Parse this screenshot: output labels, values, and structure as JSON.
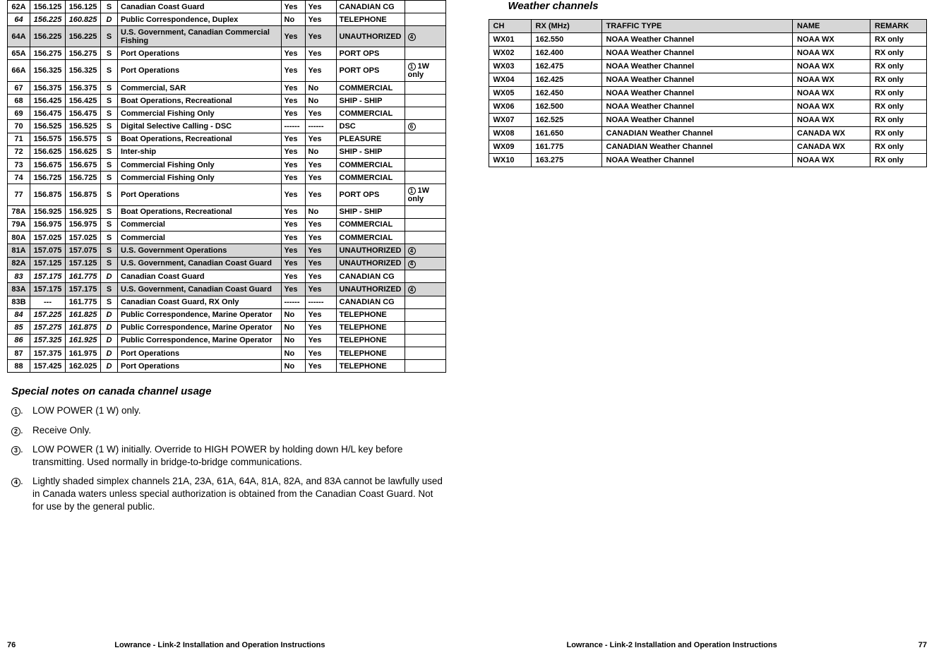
{
  "leftTable": {
    "rows": [
      {
        "ch": "62A",
        "tx": "156.125",
        "rx": "156.125",
        "mode": "S",
        "desc": "Canadian Coast Guard",
        "a": "Yes",
        "b": "Yes",
        "name": "CANADIAN CG",
        "note": "",
        "shade": false,
        "bi": false
      },
      {
        "ch": "64",
        "tx": "156.225",
        "rx": "160.825",
        "mode": "D",
        "desc": "Public Correspondence, Duplex",
        "a": "No",
        "b": "Yes",
        "name": "TELEPHONE",
        "note": "",
        "shade": false,
        "bi": true
      },
      {
        "ch": "64A",
        "tx": "156.225",
        "rx": "156.225",
        "mode": "S",
        "desc": "U.S. Government, Canadian Commercial Fishing",
        "a": "Yes",
        "b": "Yes",
        "name": "UNAUTHORIZED",
        "note": "④",
        "shade": true,
        "bi": false
      },
      {
        "ch": "65A",
        "tx": "156.275",
        "rx": "156.275",
        "mode": "S",
        "desc": "Port Operations",
        "a": "Yes",
        "b": "Yes",
        "name": "PORT OPS",
        "note": "",
        "shade": false,
        "bi": false
      },
      {
        "ch": "66A",
        "tx": "156.325",
        "rx": "156.325",
        "mode": "S",
        "desc": "Port Operations",
        "a": "Yes",
        "b": "Yes",
        "name": "PORT OPS",
        "note": "① 1W only",
        "shade": false,
        "bi": false
      },
      {
        "ch": "67",
        "tx": "156.375",
        "rx": "156.375",
        "mode": "S",
        "desc": "Commercial, SAR",
        "a": "Yes",
        "b": "No",
        "name": "COMMERCIAL",
        "note": "",
        "shade": false,
        "bi": false
      },
      {
        "ch": "68",
        "tx": "156.425",
        "rx": "156.425",
        "mode": "S",
        "desc": "Boat Operations, Recreational",
        "a": "Yes",
        "b": "No",
        "name": "SHIP - SHIP",
        "note": "",
        "shade": false,
        "bi": false
      },
      {
        "ch": "69",
        "tx": "156.475",
        "rx": "156.475",
        "mode": "S",
        "desc": "Commercial Fishing Only",
        "a": "Yes",
        "b": "Yes",
        "name": "COMMERCIAL",
        "note": "",
        "shade": false,
        "bi": false
      },
      {
        "ch": "70",
        "tx": "156.525",
        "rx": "156.525",
        "mode": "S",
        "desc": "Digital Selective Calling - DSC",
        "a": "------",
        "b": "------",
        "name": "DSC",
        "note": "⑥",
        "shade": false,
        "bi": false
      },
      {
        "ch": "71",
        "tx": "156.575",
        "rx": "156.575",
        "mode": "S",
        "desc": "Boat Operations, Recreational",
        "a": "Yes",
        "b": "Yes",
        "name": "PLEASURE",
        "note": "",
        "shade": false,
        "bi": false
      },
      {
        "ch": "72",
        "tx": "156.625",
        "rx": "156.625",
        "mode": "S",
        "desc": "Inter-ship",
        "a": "Yes",
        "b": "No",
        "name": "SHIP - SHIP",
        "note": "",
        "shade": false,
        "bi": false
      },
      {
        "ch": "73",
        "tx": "156.675",
        "rx": "156.675",
        "mode": "S",
        "desc": "Commercial Fishing Only",
        "a": "Yes",
        "b": "Yes",
        "name": "COMMERCIAL",
        "note": "",
        "shade": false,
        "bi": false
      },
      {
        "ch": "74",
        "tx": "156.725",
        "rx": "156.725",
        "mode": "S",
        "desc": "Commercial Fishing Only",
        "a": "Yes",
        "b": "Yes",
        "name": "COMMERCIAL",
        "note": "",
        "shade": false,
        "bi": false
      },
      {
        "ch": "77",
        "tx": "156.875",
        "rx": "156.875",
        "mode": "S",
        "desc": "Port Operations",
        "a": "Yes",
        "b": "Yes",
        "name": "PORT OPS",
        "note": "① 1W only",
        "shade": false,
        "bi": false
      },
      {
        "ch": "78A",
        "tx": "156.925",
        "rx": "156.925",
        "mode": "S",
        "desc": "Boat Operations, Recreational",
        "a": "Yes",
        "b": "No",
        "name": "SHIP - SHIP",
        "note": "",
        "shade": false,
        "bi": false
      },
      {
        "ch": "79A",
        "tx": "156.975",
        "rx": "156.975",
        "mode": "S",
        "desc": "Commercial",
        "a": "Yes",
        "b": "Yes",
        "name": "COMMERCIAL",
        "note": "",
        "shade": false,
        "bi": false
      },
      {
        "ch": "80A",
        "tx": "157.025",
        "rx": "157.025",
        "mode": "S",
        "desc": "Commercial",
        "a": "Yes",
        "b": "Yes",
        "name": "COMMERCIAL",
        "note": "",
        "shade": false,
        "bi": false
      },
      {
        "ch": "81A",
        "tx": "157.075",
        "rx": "157.075",
        "mode": "S",
        "desc": "U.S. Government Operations",
        "a": "Yes",
        "b": "Yes",
        "name": "UNAUTHORIZED",
        "note": "④",
        "shade": true,
        "bi": false
      },
      {
        "ch": "82A",
        "tx": "157.125",
        "rx": "157.125",
        "mode": "S",
        "desc": "U.S. Government, Canadian Coast Guard",
        "a": "Yes",
        "b": "Yes",
        "name": "UNAUTHORIZED",
        "note": "④",
        "shade": true,
        "bi": false
      },
      {
        "ch": "83",
        "tx": "157.175",
        "rx": "161.775",
        "mode": "D",
        "desc": "Canadian Coast Guard",
        "a": "Yes",
        "b": "Yes",
        "name": "CANADIAN CG",
        "note": "",
        "shade": false,
        "bi": true
      },
      {
        "ch": "83A",
        "tx": "157.175",
        "rx": "157.175",
        "mode": "S",
        "desc": "U.S. Government, Canadian Coast Guard",
        "a": "Yes",
        "b": "Yes",
        "name": "UNAUTHORIZED",
        "note": "④",
        "shade": true,
        "bi": false
      },
      {
        "ch": "83B",
        "tx": "---",
        "rx": "161.775",
        "mode": "S",
        "desc": "Canadian Coast Guard, RX Only",
        "a": "------",
        "b": "------",
        "name": "CANADIAN CG",
        "note": "",
        "shade": false,
        "bi": false
      },
      {
        "ch": "84",
        "tx": "157.225",
        "rx": "161.825",
        "mode": "D",
        "desc": "Public Correspondence, Marine Operator",
        "a": "No",
        "b": "Yes",
        "name": "TELEPHONE",
        "note": "",
        "shade": false,
        "bi": true
      },
      {
        "ch": "85",
        "tx": "157.275",
        "rx": "161.875",
        "mode": "D",
        "desc": "Public Correspondence, Marine Operator",
        "a": "No",
        "b": "Yes",
        "name": "TELEPHONE",
        "note": "",
        "shade": false,
        "bi": true
      },
      {
        "ch": "86",
        "tx": "157.325",
        "rx": "161.925",
        "mode": "D",
        "desc": "Public Correspondence, Marine Operator",
        "a": "No",
        "b": "Yes",
        "name": "TELEPHONE",
        "note": "",
        "shade": false,
        "bi": true
      },
      {
        "ch": "87",
        "tx": "157.375",
        "rx": "161.975",
        "mode": "D",
        "desc": "Port Operations",
        "a": "No",
        "b": "Yes",
        "name": "TELEPHONE",
        "note": "",
        "shade": false,
        "bi": false
      },
      {
        "ch": "88",
        "tx": "157.425",
        "rx": "162.025",
        "mode": "D",
        "desc": "Port Operations",
        "a": "No",
        "b": "Yes",
        "name": "TELEPHONE",
        "note": "",
        "shade": false,
        "bi": false
      }
    ]
  },
  "notesTitle": "Special notes on canada channel usage",
  "notes": [
    {
      "num": "1",
      "text": "LOW POWER (1 W) only."
    },
    {
      "num": "2",
      "text": "Receive Only."
    },
    {
      "num": "3",
      "text": "LOW POWER (1 W) initially. Override to HIGH POWER by holding down H/L key before transmitting. Used normally in bridge-to-bridge communications."
    },
    {
      "num": "4",
      "text": "Lightly shaded simplex channels 21A, 23A, 61A, 64A, 81A, 82A, and 83A cannot be lawfully used in Canada waters unless special authorization is obtained from the Canadian Coast Guard. Not for use by the general public."
    }
  ],
  "wxTitle": "Weather channels",
  "wxHeaders": {
    "ch": "CH",
    "rx": "RX (MHz)",
    "type": "TRAFFIC TYPE",
    "name": "NAME",
    "remark": "REMARK"
  },
  "wxRows": [
    {
      "ch": "WX01",
      "rx": "162.550",
      "type": "NOAA Weather Channel",
      "name": "NOAA WX",
      "remark": "RX only"
    },
    {
      "ch": "WX02",
      "rx": "162.400",
      "type": "NOAA Weather Channel",
      "name": "NOAA WX",
      "remark": "RX only"
    },
    {
      "ch": "WX03",
      "rx": "162.475",
      "type": "NOAA Weather Channel",
      "name": "NOAA WX",
      "remark": "RX only"
    },
    {
      "ch": "WX04",
      "rx": "162.425",
      "type": "NOAA Weather Channel",
      "name": "NOAA WX",
      "remark": "RX only"
    },
    {
      "ch": "WX05",
      "rx": "162.450",
      "type": "NOAA Weather Channel",
      "name": "NOAA WX",
      "remark": "RX only"
    },
    {
      "ch": "WX06",
      "rx": "162.500",
      "type": "NOAA Weather Channel",
      "name": "NOAA WX",
      "remark": "RX only"
    },
    {
      "ch": "WX07",
      "rx": "162.525",
      "type": "NOAA Weather Channel",
      "name": "NOAA WX",
      "remark": "RX only"
    },
    {
      "ch": "WX08",
      "rx": "161.650",
      "type": "CANADIAN Weather Channel",
      "name": "CANADA WX",
      "remark": "RX only"
    },
    {
      "ch": "WX09",
      "rx": "161.775",
      "type": "CANADIAN Weather Channel",
      "name": "CANADA WX",
      "remark": "RX only"
    },
    {
      "ch": "WX10",
      "rx": "163.275",
      "type": "NOAA Weather Channel",
      "name": "NOAA WX",
      "remark": "RX only"
    }
  ],
  "footerText": "Lowrance - Link-2 Installation and Operation Instructions",
  "pageLeft": "76",
  "pageRight": "77"
}
